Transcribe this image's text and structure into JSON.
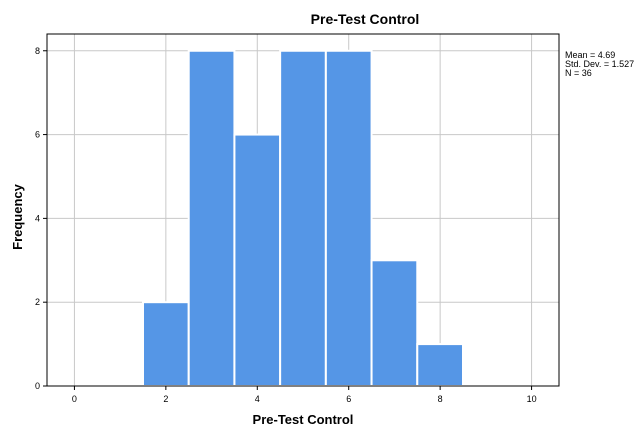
{
  "chart_data": {
    "type": "bar",
    "title": "Pre-Test Control",
    "xlabel": "Pre-Test Control",
    "ylabel": "Frequency",
    "bins": [
      {
        "x0": 1.5,
        "x1": 2.5,
        "count": 2
      },
      {
        "x0": 2.5,
        "x1": 3.5,
        "count": 8
      },
      {
        "x0": 3.5,
        "x1": 4.5,
        "count": 6
      },
      {
        "x0": 4.5,
        "x1": 5.5,
        "count": 8
      },
      {
        "x0": 5.5,
        "x1": 6.5,
        "count": 8
      },
      {
        "x0": 6.5,
        "x1": 7.5,
        "count": 3
      },
      {
        "x0": 7.5,
        "x1": 8.5,
        "count": 1
      }
    ],
    "xlim": [
      -0.6,
      10.6
    ],
    "ylim": [
      0,
      8.4
    ],
    "xticks": [
      0,
      2,
      4,
      6,
      8,
      10
    ],
    "yticks": [
      0,
      2,
      4,
      6,
      8
    ],
    "grid": true,
    "bar_color": "#5596e6",
    "stats": [
      "Mean = 4.69",
      "Std. Dev. = 1.527",
      "N = 36"
    ]
  }
}
